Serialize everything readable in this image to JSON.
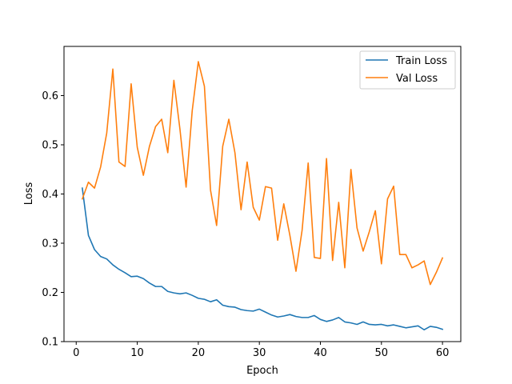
{
  "chart_data": {
    "type": "line",
    "title": "",
    "xlabel": "Epoch",
    "ylabel": "Loss",
    "xlim": [
      -2,
      63
    ],
    "ylim": [
      0.1,
      0.7
    ],
    "xticks": [
      0,
      10,
      20,
      30,
      40,
      50,
      60
    ],
    "yticks": [
      0.1,
      0.2,
      0.3,
      0.4,
      0.5,
      0.6
    ],
    "xtick_labels": [
      "0",
      "10",
      "20",
      "30",
      "40",
      "50",
      "60"
    ],
    "ytick_labels": [
      "0.1",
      "0.2",
      "0.3",
      "0.4",
      "0.5",
      "0.6"
    ],
    "legend_position": "top-right",
    "x": [
      1,
      2,
      3,
      4,
      5,
      6,
      7,
      8,
      9,
      10,
      11,
      12,
      13,
      14,
      15,
      16,
      17,
      18,
      19,
      20,
      21,
      22,
      23,
      24,
      25,
      26,
      27,
      28,
      29,
      30,
      31,
      32,
      33,
      34,
      35,
      36,
      37,
      38,
      39,
      40,
      41,
      42,
      43,
      44,
      45,
      46,
      47,
      48,
      49,
      50,
      51,
      52,
      53,
      54,
      55,
      56,
      57,
      58,
      59,
      60
    ],
    "series": [
      {
        "name": "Train Loss",
        "color": "#1f77b4",
        "values": [
          0.412,
          0.316,
          0.287,
          0.273,
          0.268,
          0.256,
          0.247,
          0.24,
          0.232,
          0.233,
          0.228,
          0.219,
          0.212,
          0.212,
          0.202,
          0.199,
          0.197,
          0.199,
          0.194,
          0.188,
          0.186,
          0.181,
          0.185,
          0.174,
          0.171,
          0.17,
          0.165,
          0.163,
          0.162,
          0.166,
          0.16,
          0.154,
          0.15,
          0.152,
          0.155,
          0.151,
          0.149,
          0.149,
          0.153,
          0.145,
          0.141,
          0.144,
          0.149,
          0.14,
          0.138,
          0.135,
          0.14,
          0.135,
          0.134,
          0.135,
          0.132,
          0.134,
          0.131,
          0.128,
          0.13,
          0.132,
          0.124,
          0.131,
          0.129,
          0.125
        ]
      },
      {
        "name": "Val Loss",
        "color": "#ff7f0e",
        "values": [
          0.39,
          0.424,
          0.412,
          0.455,
          0.524,
          0.654,
          0.465,
          0.456,
          0.624,
          0.495,
          0.438,
          0.497,
          0.537,
          0.552,
          0.484,
          0.631,
          0.531,
          0.414,
          0.569,
          0.669,
          0.619,
          0.408,
          0.336,
          0.497,
          0.552,
          0.484,
          0.368,
          0.465,
          0.373,
          0.347,
          0.415,
          0.412,
          0.306,
          0.38,
          0.316,
          0.243,
          0.326,
          0.463,
          0.271,
          0.269,
          0.472,
          0.265,
          0.383,
          0.25,
          0.45,
          0.331,
          0.284,
          0.323,
          0.366,
          0.258,
          0.39,
          0.416,
          0.277,
          0.277,
          0.25,
          0.256,
          0.264,
          0.216,
          0.241,
          0.27
        ]
      }
    ]
  }
}
